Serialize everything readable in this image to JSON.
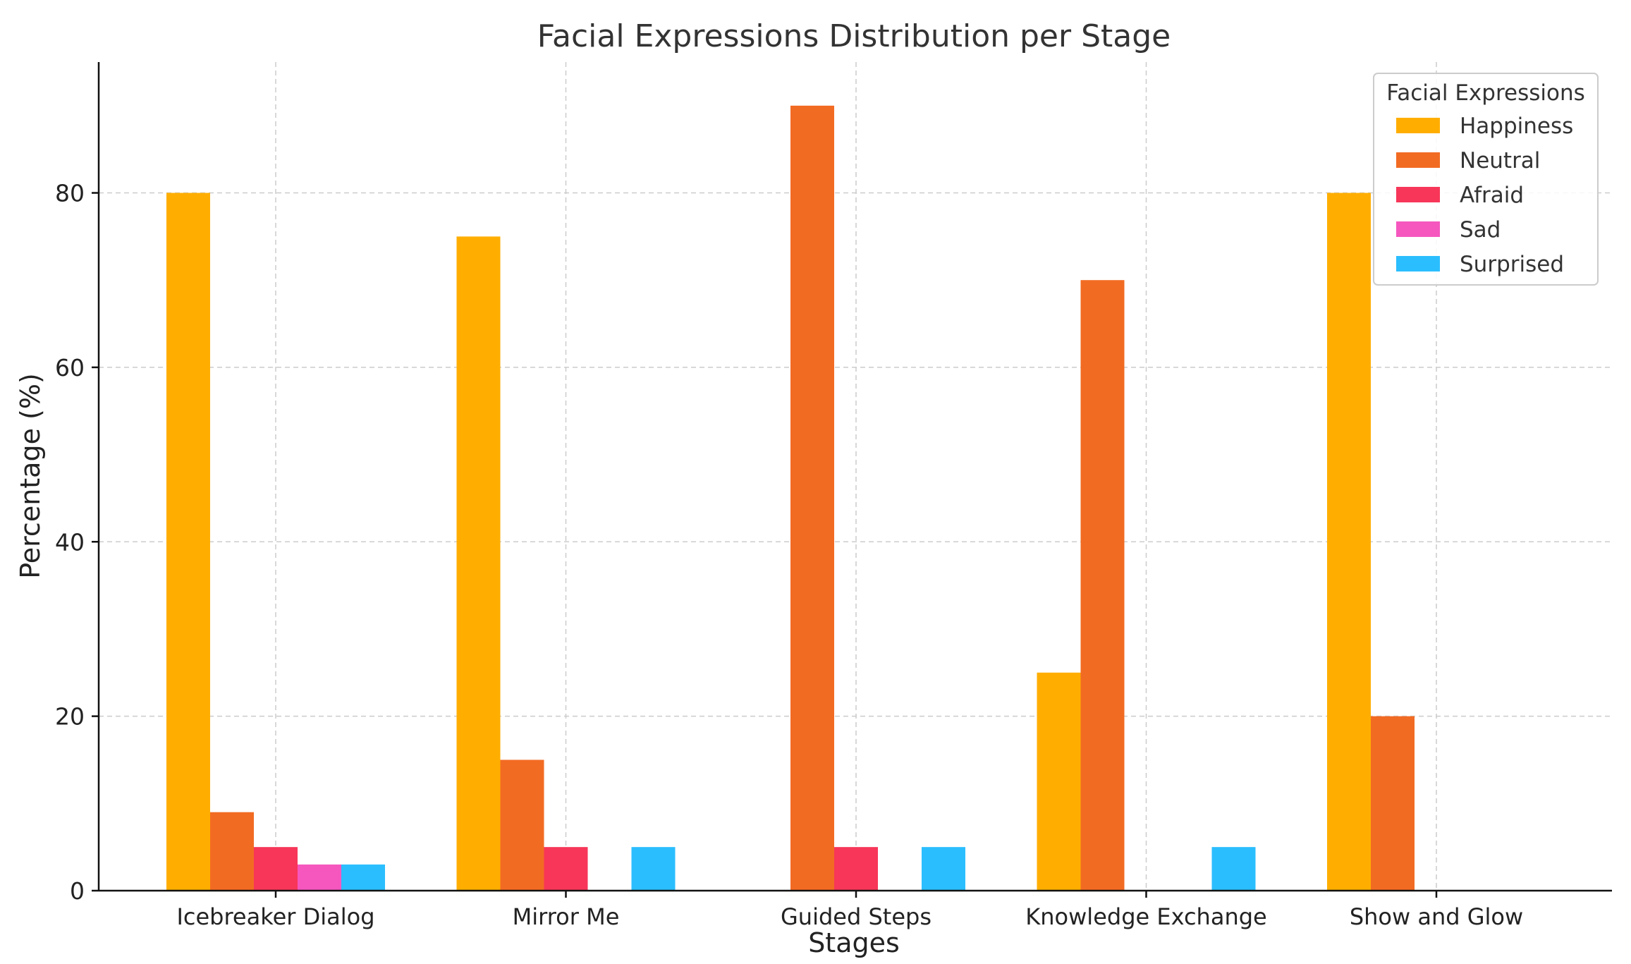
{
  "chart_data": {
    "type": "bar",
    "title": "Facial Expressions Distribution per Stage",
    "xlabel": "Stages",
    "ylabel": "Percentage (%)",
    "categories": [
      "Icebreaker Dialog",
      "Mirror Me",
      "Guided Steps",
      "Knowledge Exchange",
      "Show and Glow"
    ],
    "ylim": [
      0,
      95
    ],
    "yticks": [
      0,
      20,
      40,
      60,
      80
    ],
    "grid": true,
    "legend": {
      "title": "Facial Expressions",
      "placement": "top-right"
    },
    "series": [
      {
        "name": "Happiness",
        "color": "#FFAE00",
        "values": [
          80,
          75,
          0,
          25,
          80
        ]
      },
      {
        "name": "Neutral",
        "color": "#F26B23",
        "values": [
          9,
          15,
          90,
          70,
          20
        ]
      },
      {
        "name": "Afraid",
        "color": "#F73659",
        "values": [
          5,
          5,
          5,
          0,
          0
        ]
      },
      {
        "name": "Sad",
        "color": "#F557BF",
        "values": [
          3,
          0,
          0,
          0,
          0
        ]
      },
      {
        "name": "Surprised",
        "color": "#2BBEFF",
        "values": [
          3,
          5,
          5,
          5,
          0
        ]
      }
    ]
  }
}
